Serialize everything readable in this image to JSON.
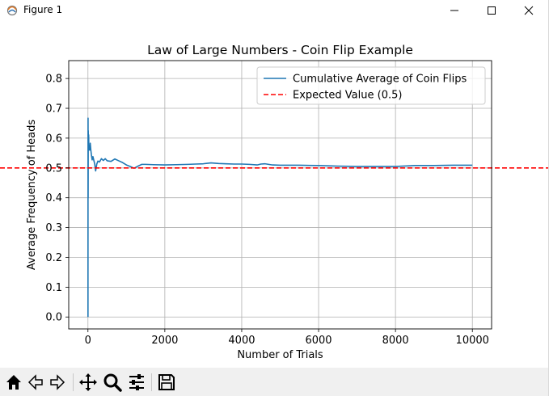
{
  "window": {
    "title": "Figure 1"
  },
  "chart_data": {
    "type": "line",
    "title": "Law of Large Numbers - Coin Flip Example",
    "xlabel": "Number of Trials",
    "ylabel": "Average Frequency of Heads",
    "xlim": [
      -500,
      10500
    ],
    "ylim": [
      -0.04,
      0.86
    ],
    "xticks": [
      0,
      2000,
      4000,
      6000,
      8000,
      10000
    ],
    "xtick_labels": [
      "0",
      "2000",
      "4000",
      "6000",
      "8000",
      "10000"
    ],
    "yticks": [
      0.0,
      0.1,
      0.2,
      0.3,
      0.4,
      0.5,
      0.6,
      0.7,
      0.8
    ],
    "ytick_labels": [
      "0.0",
      "0.1",
      "0.2",
      "0.3",
      "0.4",
      "0.5",
      "0.6",
      "0.7",
      "0.8"
    ],
    "grid": true,
    "legend_position": "upper right",
    "series": [
      {
        "name": "Cumulative Average of Coin Flips",
        "color": "#1f77b4",
        "style": "solid",
        "x": [
          1,
          2,
          3,
          4,
          5,
          6,
          8,
          10,
          12,
          15,
          18,
          20,
          25,
          30,
          40,
          50,
          60,
          75,
          90,
          110,
          130,
          150,
          175,
          200,
          230,
          260,
          300,
          350,
          400,
          450,
          500,
          600,
          700,
          800,
          900,
          1000,
          1100,
          1200,
          1300,
          1400,
          1500,
          1700,
          2000,
          2300,
          2600,
          2800,
          3000,
          3200,
          3400,
          3600,
          3800,
          4000,
          4200,
          4400,
          4500,
          4600,
          4800,
          5000,
          5500,
          6000,
          6500,
          7000,
          7500,
          8000,
          8500,
          9000,
          9500,
          10000
        ],
        "y": [
          0.0,
          0.5,
          0.667,
          0.5,
          0.4,
          0.5,
          0.625,
          0.6,
          0.583,
          0.6,
          0.611,
          0.6,
          0.56,
          0.567,
          0.575,
          0.56,
          0.583,
          0.56,
          0.544,
          0.527,
          0.538,
          0.527,
          0.514,
          0.49,
          0.513,
          0.523,
          0.52,
          0.531,
          0.525,
          0.531,
          0.524,
          0.522,
          0.53,
          0.524,
          0.518,
          0.51,
          0.505,
          0.499,
          0.506,
          0.512,
          0.512,
          0.511,
          0.51,
          0.511,
          0.512,
          0.513,
          0.514,
          0.517,
          0.515,
          0.514,
          0.513,
          0.513,
          0.512,
          0.51,
          0.513,
          0.514,
          0.51,
          0.509,
          0.509,
          0.508,
          0.506,
          0.505,
          0.505,
          0.505,
          0.508,
          0.508,
          0.509,
          0.509
        ]
      },
      {
        "name": "Expected Value (0.5)",
        "color": "#ff0000",
        "style": "dashed",
        "y_constant": 0.5
      }
    ]
  },
  "toolbar": {
    "tools": [
      "home-icon",
      "back-icon",
      "forward-icon",
      "pan-icon",
      "zoom-icon",
      "configure-subplots-icon",
      "save-icon"
    ]
  }
}
